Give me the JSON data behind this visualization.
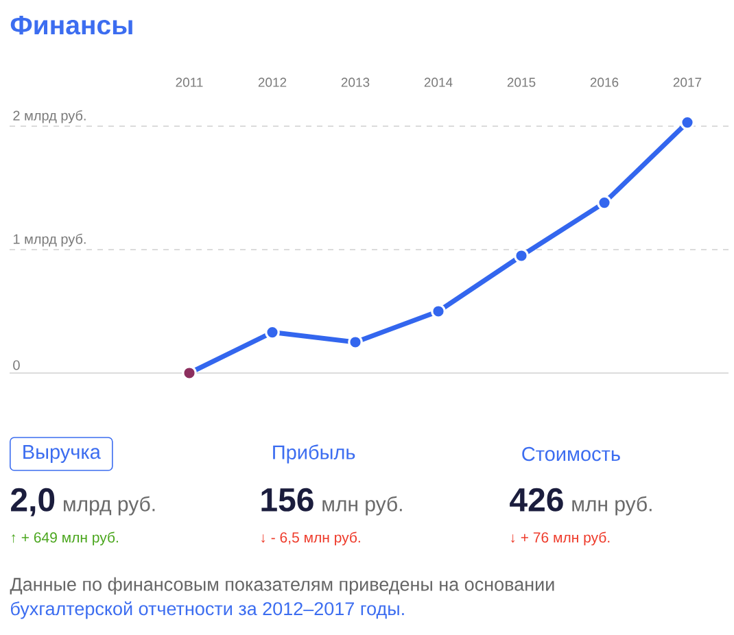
{
  "chart_data": [
    {
      "type": "line",
      "title": "Финансы",
      "categories": [
        "2011",
        "2012",
        "2013",
        "2014",
        "2015",
        "2016",
        "2017"
      ],
      "values": [
        0,
        0.33,
        0.25,
        0.5,
        0.95,
        1.38,
        2.03
      ],
      "color": "#3366ee",
      "colors": [
        "#8c2f5e",
        "#3366ee",
        "#3366ee",
        "#3366ee",
        "#3366ee",
        "#3366ee",
        "#3366ee"
      ],
      "ylim": [
        0,
        2.03
      ],
      "yticks": [
        0,
        {
          "value": 1,
          "label": "1 млрд руб."
        },
        {
          "value": 2,
          "label": "2 млрд руб."
        }
      ],
      "grid": "y",
      "marker": "circle",
      "line_style": "solid",
      "annotations": [
        "Данные по финансовым показателям приведены на основании",
        "бухгалтерской отчетности за 2012–2017 годы."
      ]
    },
    {
      "type": "other",
      "annotations": [
        "Выручка",
        "2,0",
        "млрд руб.",
        "↑ + 649 млн руб.",
        "Прибыль",
        "156",
        "млн руб.",
        "↓ - 6,5 млн руб.",
        "Стоимость",
        "426",
        "млн руб.",
        "↓ + 76 млн руб."
      ]
    }
  ]
}
